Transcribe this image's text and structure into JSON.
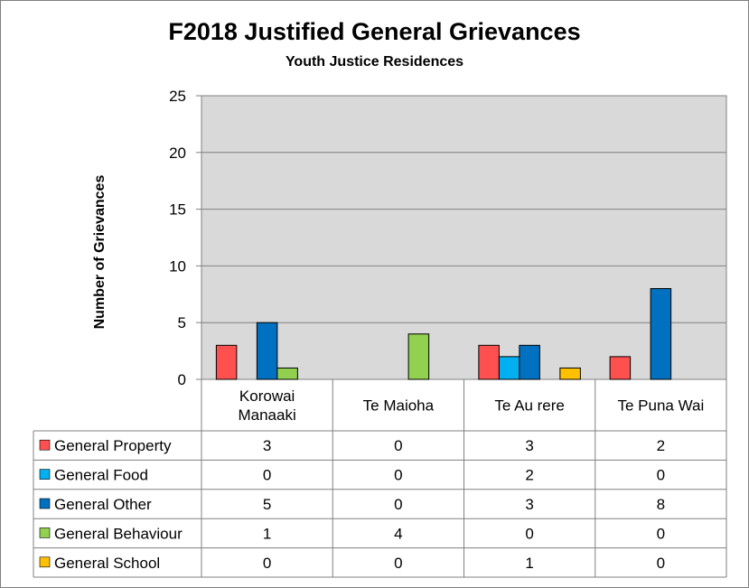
{
  "chart_data": {
    "type": "bar",
    "title": "F2018 Justified General Grievances",
    "subtitle": "Youth Justice Residences",
    "ylabel": "Number of Grievances",
    "xlabel": "",
    "ylim": [
      0,
      25
    ],
    "yticks": [
      0,
      5,
      10,
      15,
      20,
      25
    ],
    "grid": true,
    "plot_background": "#d9d9d9",
    "categories": [
      [
        "Korowai",
        "Manaaki"
      ],
      [
        "Te Maioha"
      ],
      [
        "Te Au rere"
      ],
      [
        "Te Puna Wai"
      ]
    ],
    "series": [
      {
        "name": "General Property",
        "color": "#ff5050",
        "values": [
          3,
          0,
          3,
          2
        ]
      },
      {
        "name": "General Food",
        "color": "#00b0f0",
        "values": [
          0,
          0,
          2,
          0
        ]
      },
      {
        "name": "General Other",
        "color": "#0070c0",
        "values": [
          5,
          0,
          3,
          8
        ]
      },
      {
        "name": "General Behaviour",
        "color": "#92d050",
        "values": [
          1,
          4,
          0,
          0
        ]
      },
      {
        "name": "General School",
        "color": "#ffc000",
        "values": [
          0,
          0,
          1,
          0
        ]
      }
    ],
    "legend": "data-table"
  }
}
